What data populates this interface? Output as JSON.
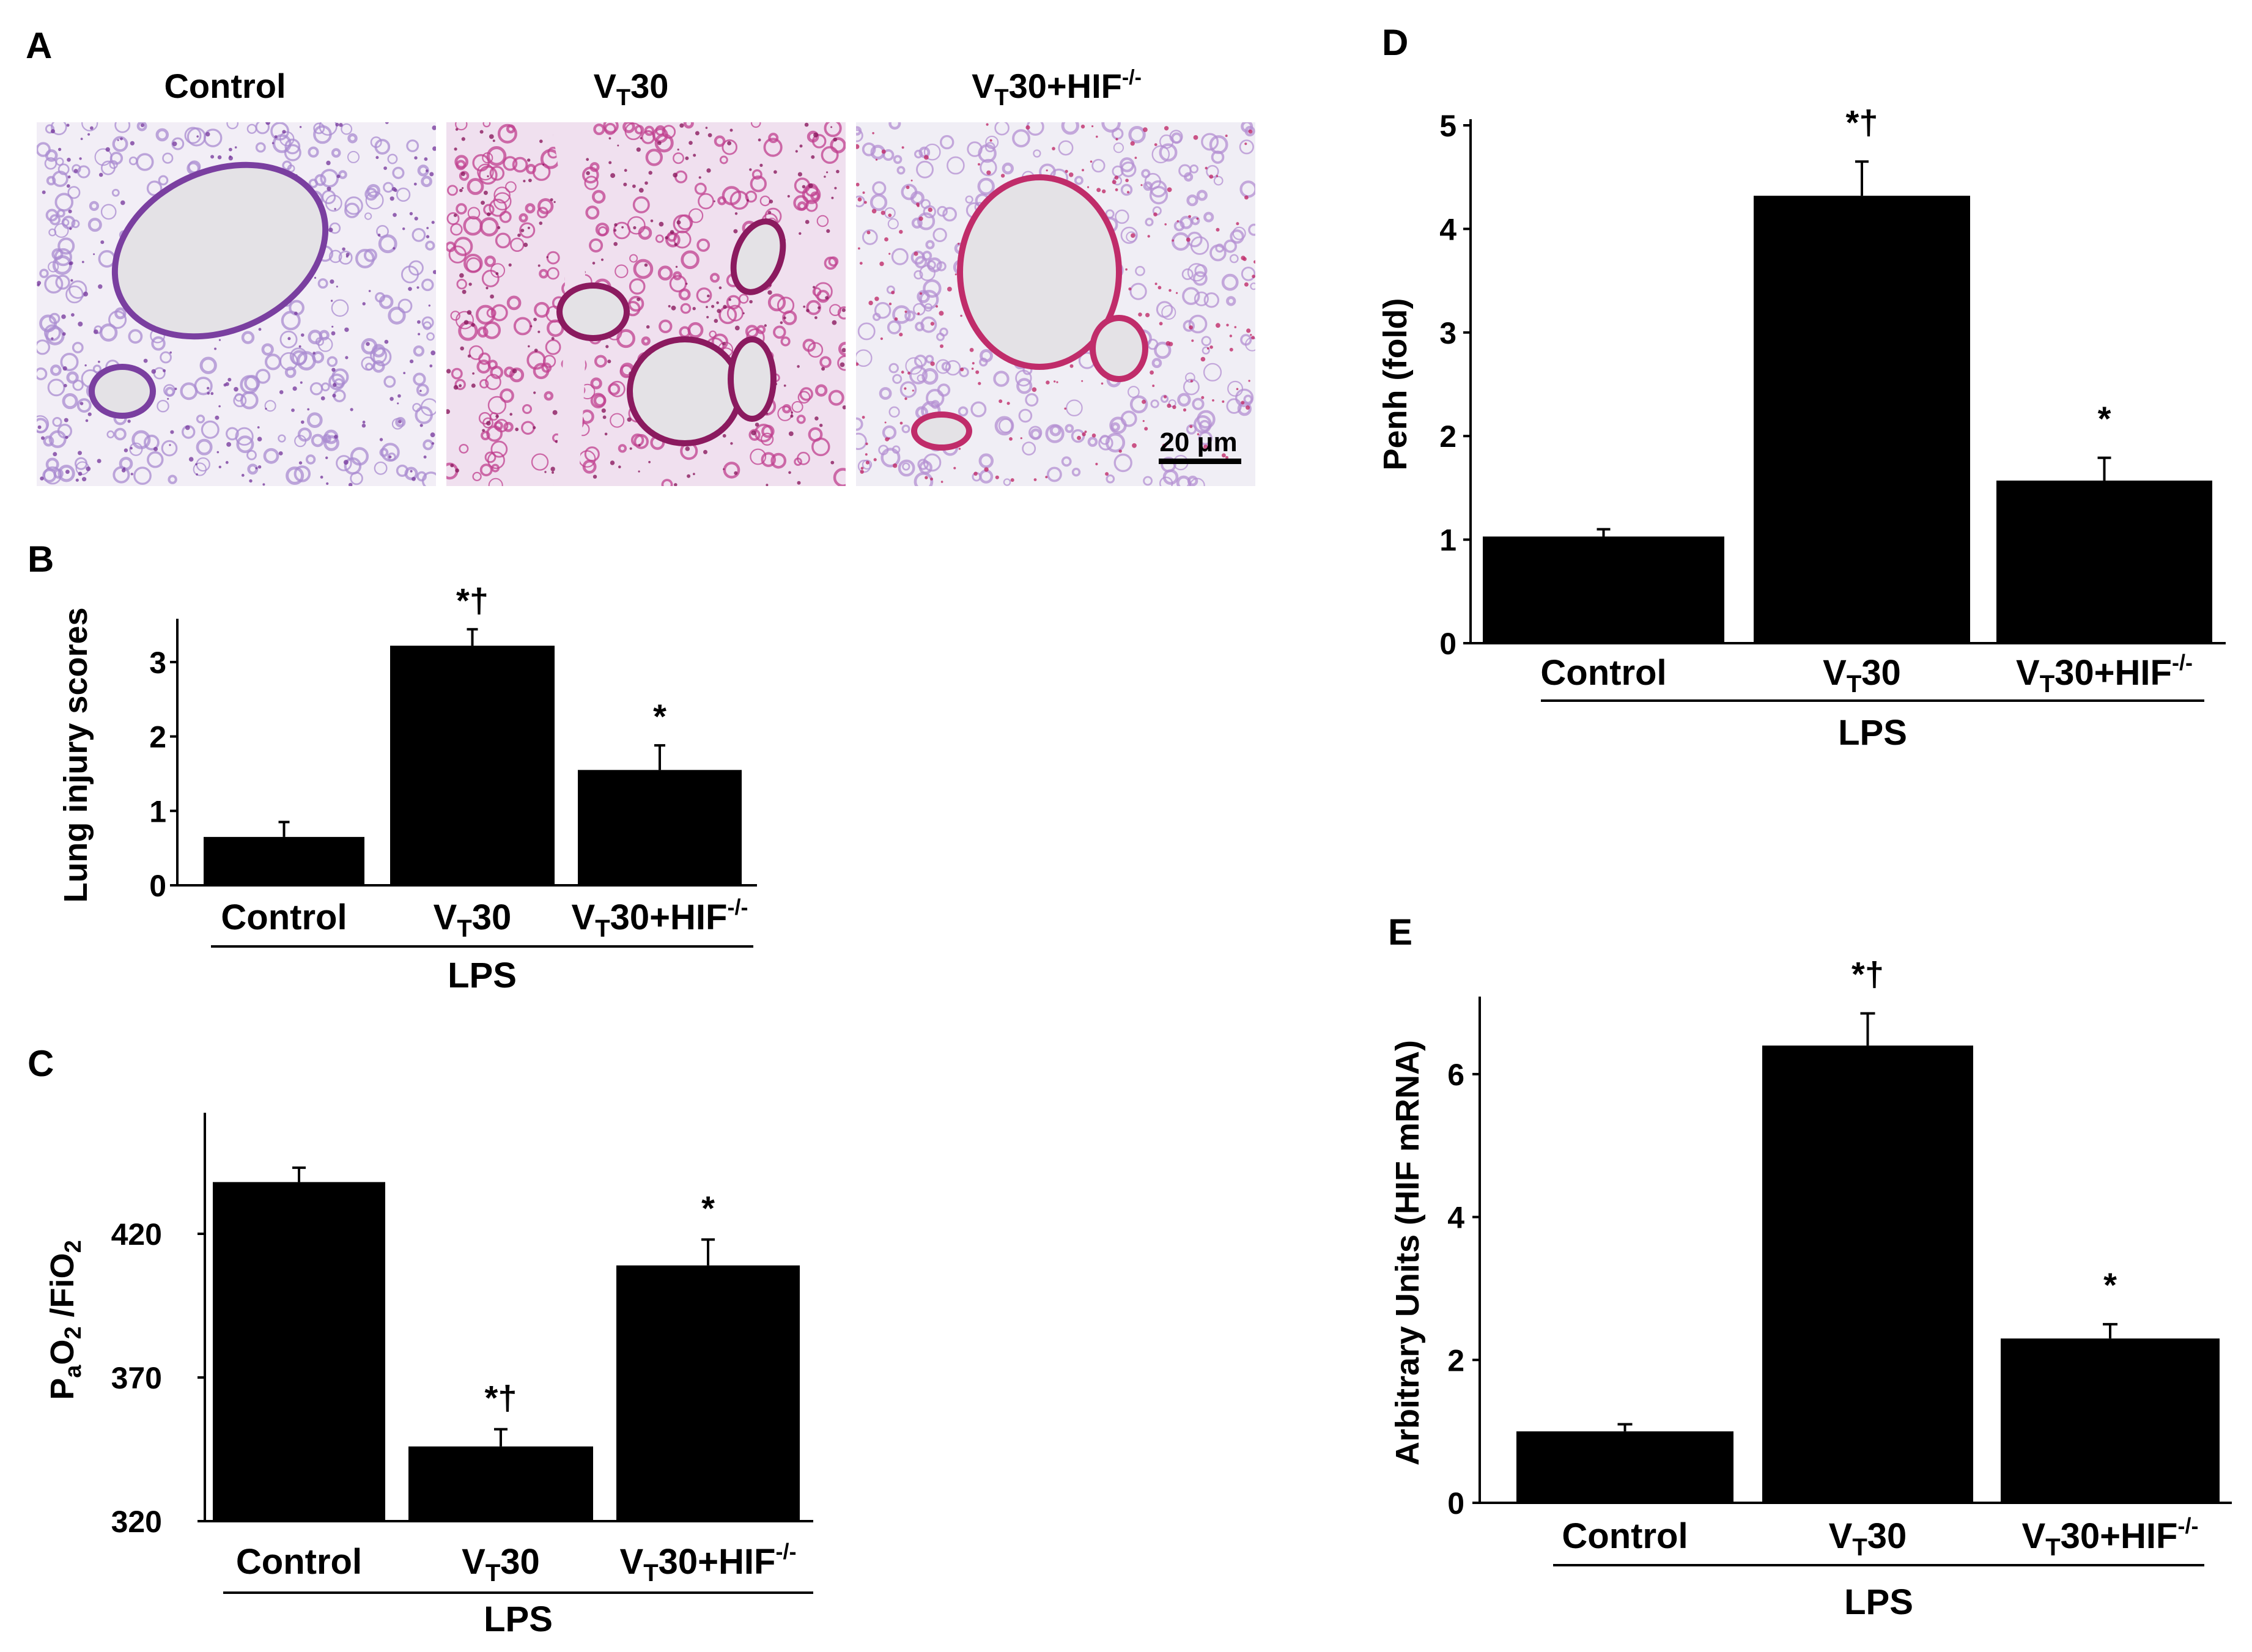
{
  "panel_A": {
    "letter": "A",
    "images": [
      {
        "title": "Control",
        "stain_colors": [
          "#f2eef6",
          "#a98bd0",
          "#7a3fa0"
        ]
      },
      {
        "title_base": "V",
        "title_sub": "T",
        "title_rest": "30",
        "stain_colors": [
          "#f0e0ef",
          "#c0408f",
          "#8b1a5f"
        ]
      },
      {
        "title_base": "V",
        "title_sub": "T",
        "title_rest": "30+HIF",
        "title_sup": "-/-",
        "stain_colors": [
          "#f0eef5",
          "#b48fd2",
          "#c02c6a"
        ]
      }
    ],
    "scale_bar": "20 μm"
  },
  "chart_data": [
    {
      "panel": "B",
      "type": "bar",
      "categories": [
        "Control",
        "VT30",
        "VT30+HIF-/-"
      ],
      "values": [
        0.65,
        3.22,
        1.55
      ],
      "errors": [
        0.2,
        0.22,
        0.33
      ],
      "significance": [
        "",
        "*†",
        "*"
      ],
      "ylabel": "Lung injury scores",
      "yticks": [
        0,
        1,
        2,
        3
      ],
      "ylim": [
        0,
        3.5
      ],
      "group_label": "LPS",
      "bar_color": "#000000"
    },
    {
      "panel": "C",
      "type": "bar",
      "categories": [
        "Control",
        "VT30",
        "VT30+HIF-/-"
      ],
      "values": [
        438,
        346,
        409
      ],
      "errors": [
        5,
        6,
        9
      ],
      "significance": [
        "",
        "*†",
        "*"
      ],
      "ylabel_parts": {
        "base": "P",
        "sub1": "a",
        "mid": "O",
        "sub2": "2",
        "rest": " /FiO",
        "sub3": "2"
      },
      "yticks": [
        320,
        370,
        420
      ],
      "ylim": [
        320,
        460
      ],
      "group_label": "LPS",
      "bar_color": "#000000"
    },
    {
      "panel": "D",
      "type": "bar",
      "categories": [
        "Control",
        "VT30",
        "VT30+HIF-/-"
      ],
      "values": [
        1.03,
        4.32,
        1.57
      ],
      "errors": [
        0.07,
        0.33,
        0.22
      ],
      "significance": [
        "",
        "*†",
        "*"
      ],
      "ylabel": "Penh (fold)",
      "yticks": [
        0,
        1,
        2,
        3,
        4,
        5
      ],
      "ylim": [
        0,
        5
      ],
      "group_label": "LPS",
      "bar_color": "#000000"
    },
    {
      "panel": "E",
      "type": "bar",
      "categories": [
        "Control",
        "VT30",
        "VT30+HIF-/-"
      ],
      "values": [
        1.0,
        6.4,
        2.3
      ],
      "errors": [
        0.1,
        0.45,
        0.2
      ],
      "significance": [
        "",
        "*†",
        "*"
      ],
      "ylabel": "Arbitrary Units (HIF mRNA)",
      "yticks": [
        0,
        2,
        4,
        6
      ],
      "ylim": [
        0,
        7
      ],
      "group_label": "LPS",
      "bar_color": "#000000"
    }
  ]
}
